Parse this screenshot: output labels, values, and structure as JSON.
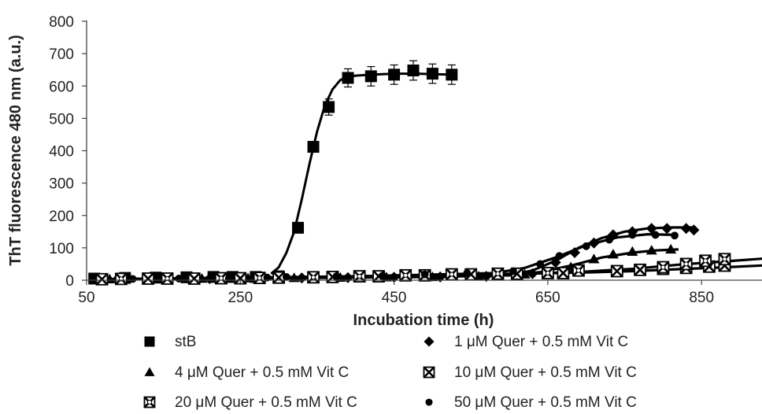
{
  "chart_data": {
    "type": "scatter",
    "xlabel": "Incubation time (h)",
    "ylabel": "ThT fluorescence 480 nm (a.u.)",
    "xlim": [
      50,
      950
    ],
    "ylim": [
      0,
      800
    ],
    "x_ticks": [
      50,
      250,
      450,
      650,
      850
    ],
    "y_ticks": [
      0,
      100,
      200,
      300,
      400,
      500,
      600,
      700,
      800
    ],
    "grid": false,
    "legend_position": "bottom",
    "series": [
      {
        "name": "stB",
        "marker": "square",
        "x": [
          60,
          100,
          140,
          180,
          215,
          240,
          270,
          300,
          325,
          345,
          365,
          390,
          420,
          450,
          475,
          500,
          525
        ],
        "y": [
          5,
          7,
          8,
          9,
          10,
          10,
          10,
          12,
          162,
          412,
          535,
          625,
          630,
          635,
          648,
          638,
          635
        ],
        "error": [
          0,
          0,
          0,
          0,
          0,
          0,
          0,
          0,
          0,
          0,
          25,
          28,
          30,
          30,
          30,
          30,
          30
        ],
        "fit_x": [
          290,
          300,
          310,
          320,
          330,
          340,
          350,
          360,
          370,
          380,
          390,
          400,
          420,
          450,
          480,
          525
        ],
        "fit_y": [
          20,
          40,
          85,
          150,
          250,
          360,
          460,
          540,
          590,
          618,
          628,
          632,
          635,
          638,
          638,
          635
        ]
      },
      {
        "name": "1 μM Quer + 0.5 mM Vit C",
        "marker": "diamond",
        "x": [
          90,
          150,
          210,
          270,
          330,
          390,
          450,
          510,
          570,
          630,
          660,
          685,
          710,
          735,
          760,
          785,
          805,
          830,
          840
        ],
        "y": [
          3,
          5,
          5,
          6,
          7,
          8,
          9,
          10,
          12,
          20,
          55,
          85,
          115,
          140,
          150,
          160,
          160,
          160,
          155
        ],
        "fit_x": [
          90,
          300,
          500,
          600,
          630,
          660,
          690,
          720,
          750,
          780,
          810,
          840
        ],
        "fit_y": [
          3,
          6,
          10,
          15,
          30,
          60,
          100,
          130,
          150,
          160,
          163,
          163
        ]
      },
      {
        "name": "4 μM Quer + 0.5 mM Vit C",
        "marker": "triangle",
        "x": [
          80,
          140,
          200,
          260,
          320,
          380,
          440,
          500,
          560,
          620,
          680,
          710,
          735,
          760,
          785,
          810
        ],
        "y": [
          3,
          5,
          5,
          6,
          7,
          8,
          9,
          10,
          12,
          18,
          40,
          65,
          80,
          88,
          92,
          95
        ],
        "fit_x": [
          80,
          400,
          600,
          640,
          680,
          720,
          760,
          790,
          820
        ],
        "fit_y": [
          3,
          8,
          15,
          25,
          45,
          70,
          85,
          92,
          95
        ]
      },
      {
        "name": "10 μM Quer + 0.5 mM Vit C",
        "marker": "square-x",
        "x": [
          70,
          130,
          190,
          250,
          300,
          370,
          430,
          490,
          550,
          610,
          670,
          740,
          770,
          800,
          830,
          860,
          880
        ],
        "y": [
          3,
          5,
          5,
          6,
          8,
          10,
          12,
          15,
          18,
          20,
          22,
          28,
          32,
          35,
          38,
          42,
          45
        ],
        "fit_x": [
          70,
          300,
          500,
          620,
          700,
          760,
          820,
          880,
          950
        ],
        "fit_y": [
          3,
          8,
          15,
          20,
          24,
          28,
          34,
          40,
          48
        ]
      },
      {
        "name": "20 μM Quer + 0.5 mM Vit C",
        "marker": "square-x-dot",
        "x": [
          95,
          155,
          225,
          275,
          345,
          405,
          465,
          525,
          585,
          650,
          690,
          800,
          830,
          855,
          880
        ],
        "y": [
          4,
          5,
          6,
          7,
          9,
          12,
          15,
          18,
          20,
          22,
          30,
          40,
          50,
          60,
          65
        ],
        "fit_x": [
          95,
          400,
          600,
          680,
          760,
          820,
          880,
          950
        ],
        "fit_y": [
          4,
          12,
          20,
          24,
          35,
          48,
          58,
          70
        ]
      },
      {
        "name": "50 μM Quer + 0.5 mM Vit C",
        "marker": "circle",
        "x": [
          110,
          170,
          235,
          285,
          310,
          375,
          435,
          490,
          545,
          605,
          640,
          665,
          700,
          730,
          760,
          790,
          815
        ],
        "y": [
          4,
          5,
          6,
          8,
          10,
          12,
          14,
          18,
          22,
          28,
          50,
          75,
          105,
          125,
          140,
          140,
          138
        ],
        "fit_x": [
          110,
          400,
          580,
          620,
          660,
          700,
          740,
          780,
          815
        ],
        "fit_y": [
          4,
          12,
          22,
          38,
          70,
          108,
          132,
          142,
          140
        ]
      }
    ]
  }
}
